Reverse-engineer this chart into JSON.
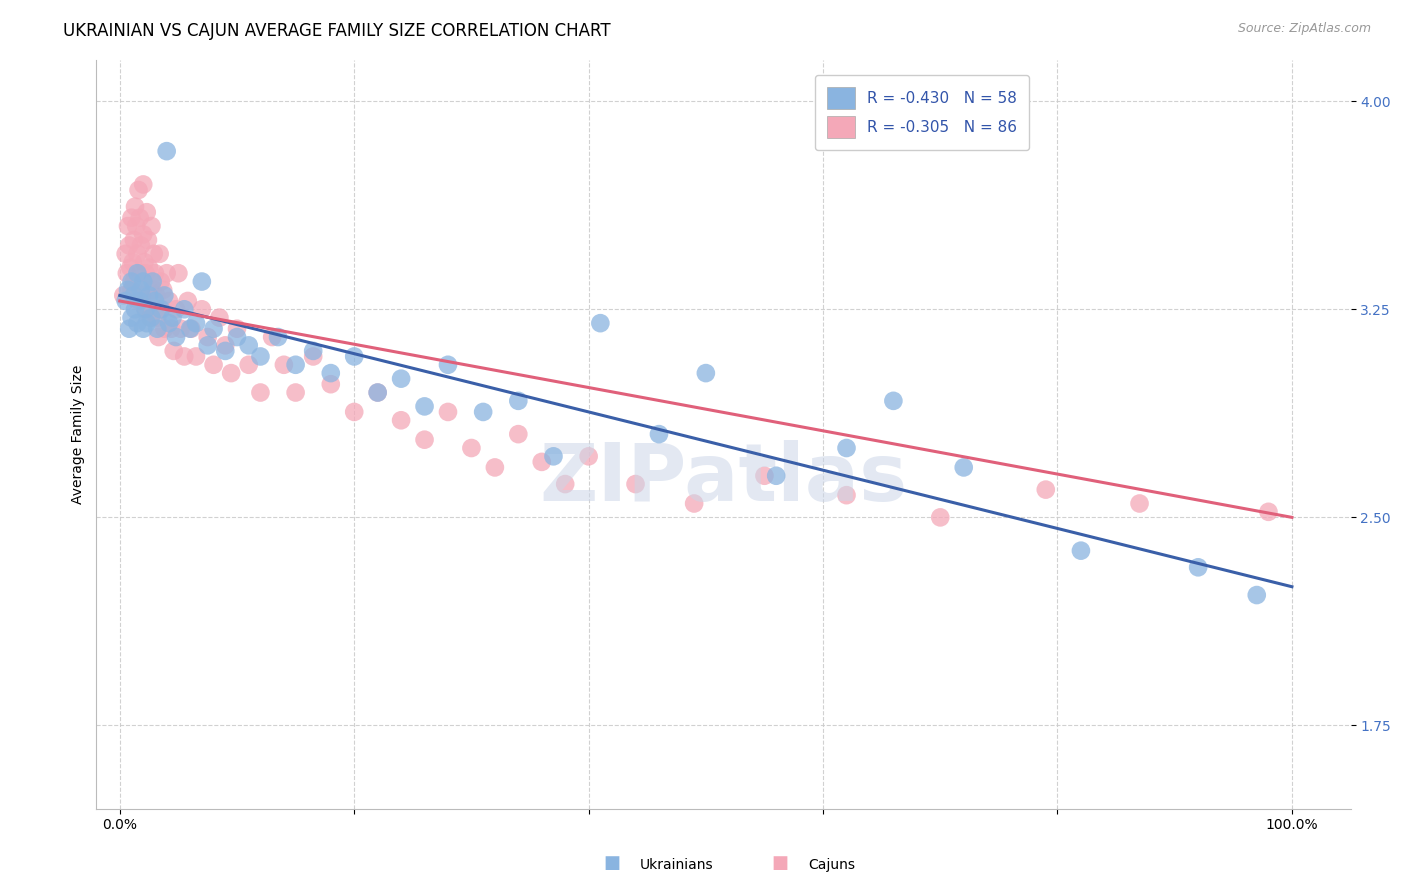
{
  "title": "UKRAINIAN VS CAJUN AVERAGE FAMILY SIZE CORRELATION CHART",
  "source": "Source: ZipAtlas.com",
  "ylabel": "Average Family Size",
  "ylim": [
    1.45,
    4.15
  ],
  "xlim": [
    -0.02,
    1.05
  ],
  "yticks": [
    1.75,
    2.5,
    3.25,
    4.0
  ],
  "legend_ukrainian": "R = -0.430   N = 58",
  "legend_cajun": "R = -0.305   N = 86",
  "legend_label_ukrainian": "Ukrainians",
  "legend_label_cajun": "Cajuns",
  "blue_color": "#8ab4e0",
  "pink_color": "#f4a8b8",
  "line_blue": "#3a5fa8",
  "line_pink": "#e0607a",
  "background_color": "#ffffff",
  "watermark_color": "#ccd6e8",
  "title_fontsize": 12,
  "source_fontsize": 9,
  "axis_label_fontsize": 10,
  "tick_fontsize": 10,
  "legend_fontsize": 11,
  "ukrainian_x": [
    0.005,
    0.007,
    0.008,
    0.01,
    0.01,
    0.012,
    0.013,
    0.015,
    0.015,
    0.017,
    0.018,
    0.02,
    0.02,
    0.022,
    0.023,
    0.025,
    0.027,
    0.028,
    0.03,
    0.032,
    0.035,
    0.038,
    0.04,
    0.042,
    0.045,
    0.048,
    0.055,
    0.06,
    0.065,
    0.07,
    0.075,
    0.08,
    0.09,
    0.1,
    0.11,
    0.12,
    0.135,
    0.15,
    0.165,
    0.18,
    0.2,
    0.22,
    0.24,
    0.26,
    0.28,
    0.31,
    0.34,
    0.37,
    0.41,
    0.46,
    0.5,
    0.56,
    0.62,
    0.66,
    0.72,
    0.82,
    0.92,
    0.97
  ],
  "ukrainian_y": [
    3.28,
    3.32,
    3.18,
    3.35,
    3.22,
    3.3,
    3.25,
    3.38,
    3.2,
    3.28,
    3.32,
    3.35,
    3.18,
    3.25,
    3.2,
    3.3,
    3.22,
    3.35,
    3.28,
    3.18,
    3.25,
    3.3,
    3.82,
    3.2,
    3.22,
    3.15,
    3.25,
    3.18,
    3.2,
    3.35,
    3.12,
    3.18,
    3.1,
    3.15,
    3.12,
    3.08,
    3.15,
    3.05,
    3.1,
    3.02,
    3.08,
    2.95,
    3.0,
    2.9,
    3.05,
    2.88,
    2.92,
    2.72,
    3.2,
    2.8,
    3.02,
    2.65,
    2.75,
    2.92,
    2.68,
    2.38,
    2.32,
    2.22
  ],
  "cajun_x": [
    0.003,
    0.005,
    0.006,
    0.007,
    0.008,
    0.009,
    0.01,
    0.01,
    0.011,
    0.012,
    0.012,
    0.013,
    0.014,
    0.015,
    0.015,
    0.016,
    0.017,
    0.018,
    0.018,
    0.019,
    0.02,
    0.02,
    0.021,
    0.022,
    0.022,
    0.023,
    0.024,
    0.025,
    0.025,
    0.026,
    0.027,
    0.028,
    0.029,
    0.03,
    0.031,
    0.032,
    0.033,
    0.034,
    0.035,
    0.036,
    0.037,
    0.038,
    0.04,
    0.042,
    0.044,
    0.046,
    0.048,
    0.05,
    0.052,
    0.055,
    0.058,
    0.061,
    0.065,
    0.07,
    0.075,
    0.08,
    0.085,
    0.09,
    0.095,
    0.1,
    0.11,
    0.12,
    0.13,
    0.14,
    0.15,
    0.165,
    0.18,
    0.2,
    0.22,
    0.24,
    0.26,
    0.28,
    0.3,
    0.32,
    0.34,
    0.36,
    0.38,
    0.4,
    0.44,
    0.49,
    0.55,
    0.62,
    0.7,
    0.79,
    0.87,
    0.98
  ],
  "cajun_y": [
    3.3,
    3.45,
    3.38,
    3.55,
    3.48,
    3.4,
    3.32,
    3.58,
    3.42,
    3.35,
    3.5,
    3.62,
    3.55,
    3.45,
    3.28,
    3.68,
    3.58,
    3.48,
    3.38,
    3.3,
    3.7,
    3.52,
    3.42,
    3.38,
    3.25,
    3.6,
    3.5,
    3.4,
    3.32,
    3.22,
    3.55,
    3.32,
    3.45,
    3.38,
    3.3,
    3.22,
    3.15,
    3.45,
    3.35,
    3.25,
    3.32,
    3.18,
    3.38,
    3.28,
    3.18,
    3.1,
    3.25,
    3.38,
    3.18,
    3.08,
    3.28,
    3.18,
    3.08,
    3.25,
    3.15,
    3.05,
    3.22,
    3.12,
    3.02,
    3.18,
    3.05,
    2.95,
    3.15,
    3.05,
    2.95,
    3.08,
    2.98,
    2.88,
    2.95,
    2.85,
    2.78,
    2.88,
    2.75,
    2.68,
    2.8,
    2.7,
    2.62,
    2.72,
    2.62,
    2.55,
    2.65,
    2.58,
    2.5,
    2.6,
    2.55,
    2.52
  ],
  "line_blue_x0": 0.0,
  "line_blue_y0": 3.3,
  "line_blue_x1": 1.0,
  "line_blue_y1": 2.25,
  "line_pink_x0": 0.0,
  "line_pink_y0": 3.28,
  "line_pink_x1": 1.0,
  "line_pink_y1": 2.5
}
